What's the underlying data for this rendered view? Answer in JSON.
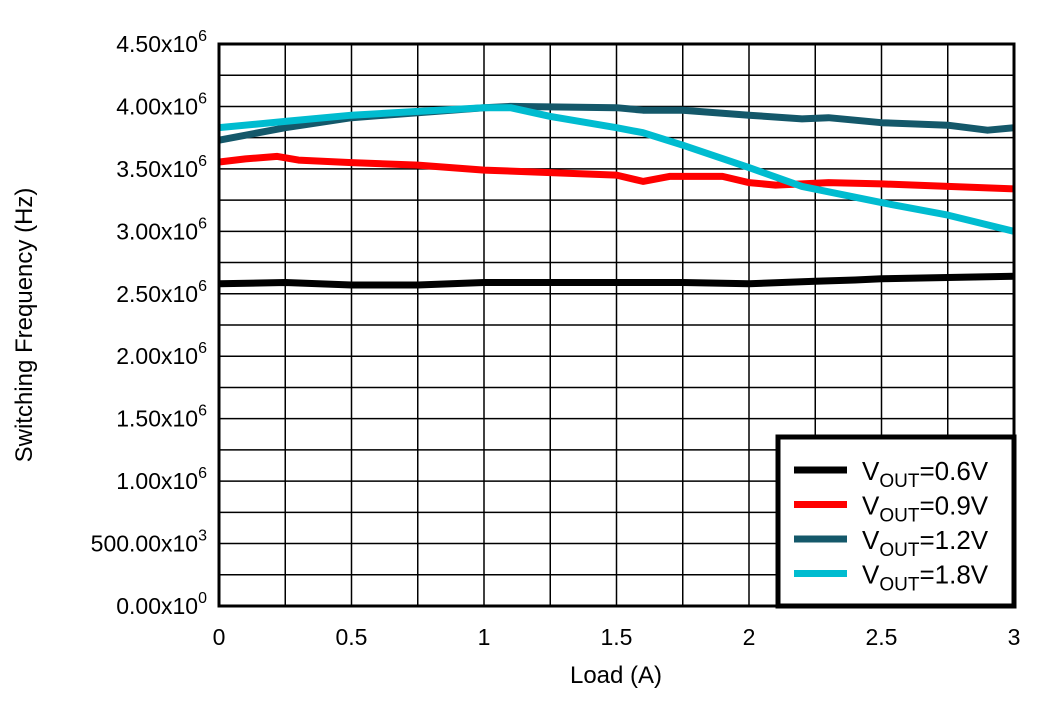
{
  "chart_data": {
    "type": "line",
    "xlabel": "Load (A)",
    "ylabel": "Switching Frequency (Hz)",
    "xlim": [
      0,
      3
    ],
    "ylim": [
      0,
      4500000
    ],
    "grid": true,
    "legend_placement": "bottom-right",
    "x_ticks": [
      "0",
      "0.5",
      "1",
      "1.5",
      "2",
      "2.5",
      "3"
    ],
    "y_ticks": [
      {
        "mant": "0.00x10",
        "exp": "0"
      },
      {
        "mant": "500.00x10",
        "exp": "3"
      },
      {
        "mant": "1.00x10",
        "exp": "6"
      },
      {
        "mant": "1.50x10",
        "exp": "6"
      },
      {
        "mant": "2.00x10",
        "exp": "6"
      },
      {
        "mant": "2.50x10",
        "exp": "6"
      },
      {
        "mant": "3.00x10",
        "exp": "6"
      },
      {
        "mant": "3.50x10",
        "exp": "6"
      },
      {
        "mant": "4.00x10",
        "exp": "6"
      },
      {
        "mant": "4.50x10",
        "exp": "6"
      }
    ],
    "series": [
      {
        "name": "V_OUT=0.6V",
        "label_main": "V",
        "label_sub": "OUT",
        "label_rest": "=0.6V",
        "color": "#000000",
        "x": [
          0,
          0.25,
          0.5,
          0.75,
          1.0,
          1.25,
          1.5,
          1.75,
          2.0,
          2.25,
          2.4,
          2.5,
          2.75,
          3.0
        ],
        "y": [
          2580000,
          2590000,
          2570000,
          2570000,
          2590000,
          2590000,
          2590000,
          2590000,
          2580000,
          2600000,
          2610000,
          2620000,
          2630000,
          2640000
        ]
      },
      {
        "name": "V_OUT=0.9V",
        "label_main": "V",
        "label_sub": "OUT",
        "label_rest": "=0.9V",
        "color": "#ff0000",
        "x": [
          0,
          0.1,
          0.22,
          0.3,
          0.5,
          0.75,
          1.0,
          1.25,
          1.5,
          1.6,
          1.7,
          1.9,
          2.0,
          2.1,
          2.3,
          2.5,
          2.75,
          3.0
        ],
        "y": [
          3555000,
          3580000,
          3600000,
          3570000,
          3550000,
          3530000,
          3490000,
          3470000,
          3450000,
          3400000,
          3440000,
          3440000,
          3390000,
          3370000,
          3390000,
          3380000,
          3360000,
          3340000
        ]
      },
      {
        "name": "V_OUT=1.2V",
        "label_main": "V",
        "label_sub": "OUT",
        "label_rest": "=1.2V",
        "color": "#14586a",
        "x": [
          0,
          0.25,
          0.5,
          0.75,
          1.0,
          1.1,
          1.5,
          1.6,
          1.75,
          2.0,
          2.2,
          2.3,
          2.5,
          2.75,
          2.9,
          3.0
        ],
        "y": [
          3730000,
          3830000,
          3910000,
          3950000,
          3990000,
          4000000,
          3990000,
          3970000,
          3970000,
          3930000,
          3900000,
          3910000,
          3870000,
          3850000,
          3810000,
          3830000
        ]
      },
      {
        "name": "V_OUT=1.8V",
        "label_main": "V",
        "label_sub": "OUT",
        "label_rest": "=1.8V",
        "color": "#00bcd0",
        "x": [
          0,
          0.25,
          0.5,
          0.75,
          1.0,
          1.1,
          1.25,
          1.5,
          1.6,
          1.75,
          2.0,
          2.2,
          2.5,
          2.75,
          3.0
        ],
        "y": [
          3830000,
          3880000,
          3930000,
          3960000,
          3990000,
          3990000,
          3920000,
          3830000,
          3790000,
          3690000,
          3510000,
          3360000,
          3230000,
          3130000,
          3000000
        ]
      }
    ]
  }
}
